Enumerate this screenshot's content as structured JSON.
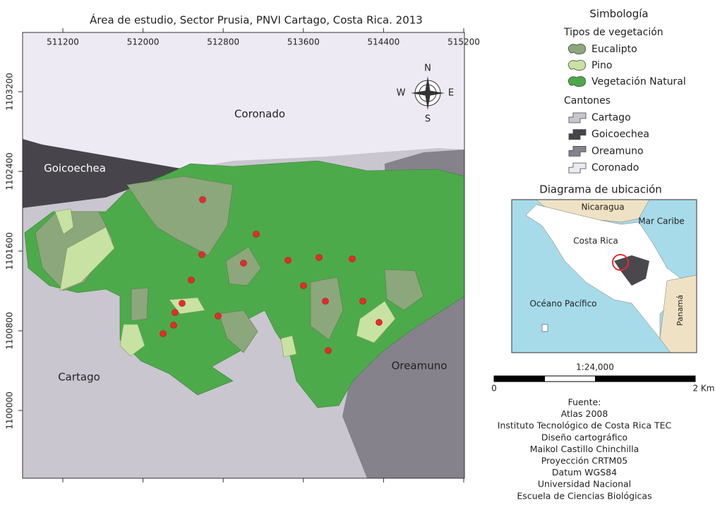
{
  "map": {
    "title": "Área de estudio, Sector Prusia, PNVI Cartago, Costa Rica. 2013",
    "x_ticks": [
      "511200",
      "512000",
      "512800",
      "513600",
      "514400",
      "515200"
    ],
    "y_ticks": [
      "1103200",
      "1102400",
      "1101600",
      "1100800",
      "1100000"
    ],
    "places": {
      "coronado": "Coronado",
      "goicoechea": "Goicoechea",
      "cartago": "Cartago",
      "oreamuno": "Oreamuno"
    },
    "compass": {
      "n": "N",
      "s": "S",
      "w": "W",
      "e": "E"
    }
  },
  "legend": {
    "title": "Simbología",
    "vegetation_title": "Tipos de vegetación",
    "vegetation": [
      "Eucalipto",
      "Pino",
      "Vegetación Natural"
    ],
    "cantons_title": "Cantones",
    "cantons": [
      "Cartago",
      "Goicoechea",
      "Oreamuno",
      "Coronado"
    ]
  },
  "location_map": {
    "title": "Diagrama de ubicación",
    "nicaragua": "Nicaragua",
    "caribbean": "Mar Caribe",
    "costa_rica": "Costa Rica",
    "pacific": "Océano Pacífico",
    "panama": "Panamá"
  },
  "scale_bar": {
    "ratio": "1:24,000",
    "start": "0",
    "end": "2 Km"
  },
  "source": [
    "Fuente:",
    "Atlas 2008",
    "Instituto Tecnológico de Costa Rica TEC",
    "Diseño cartográfico",
    "Maikol Castillo Chinchilla",
    "Proyección CRTM05",
    "Datum WGS84",
    "Universidad Nacional",
    "Escuela de Ciencias Biológicas"
  ]
}
